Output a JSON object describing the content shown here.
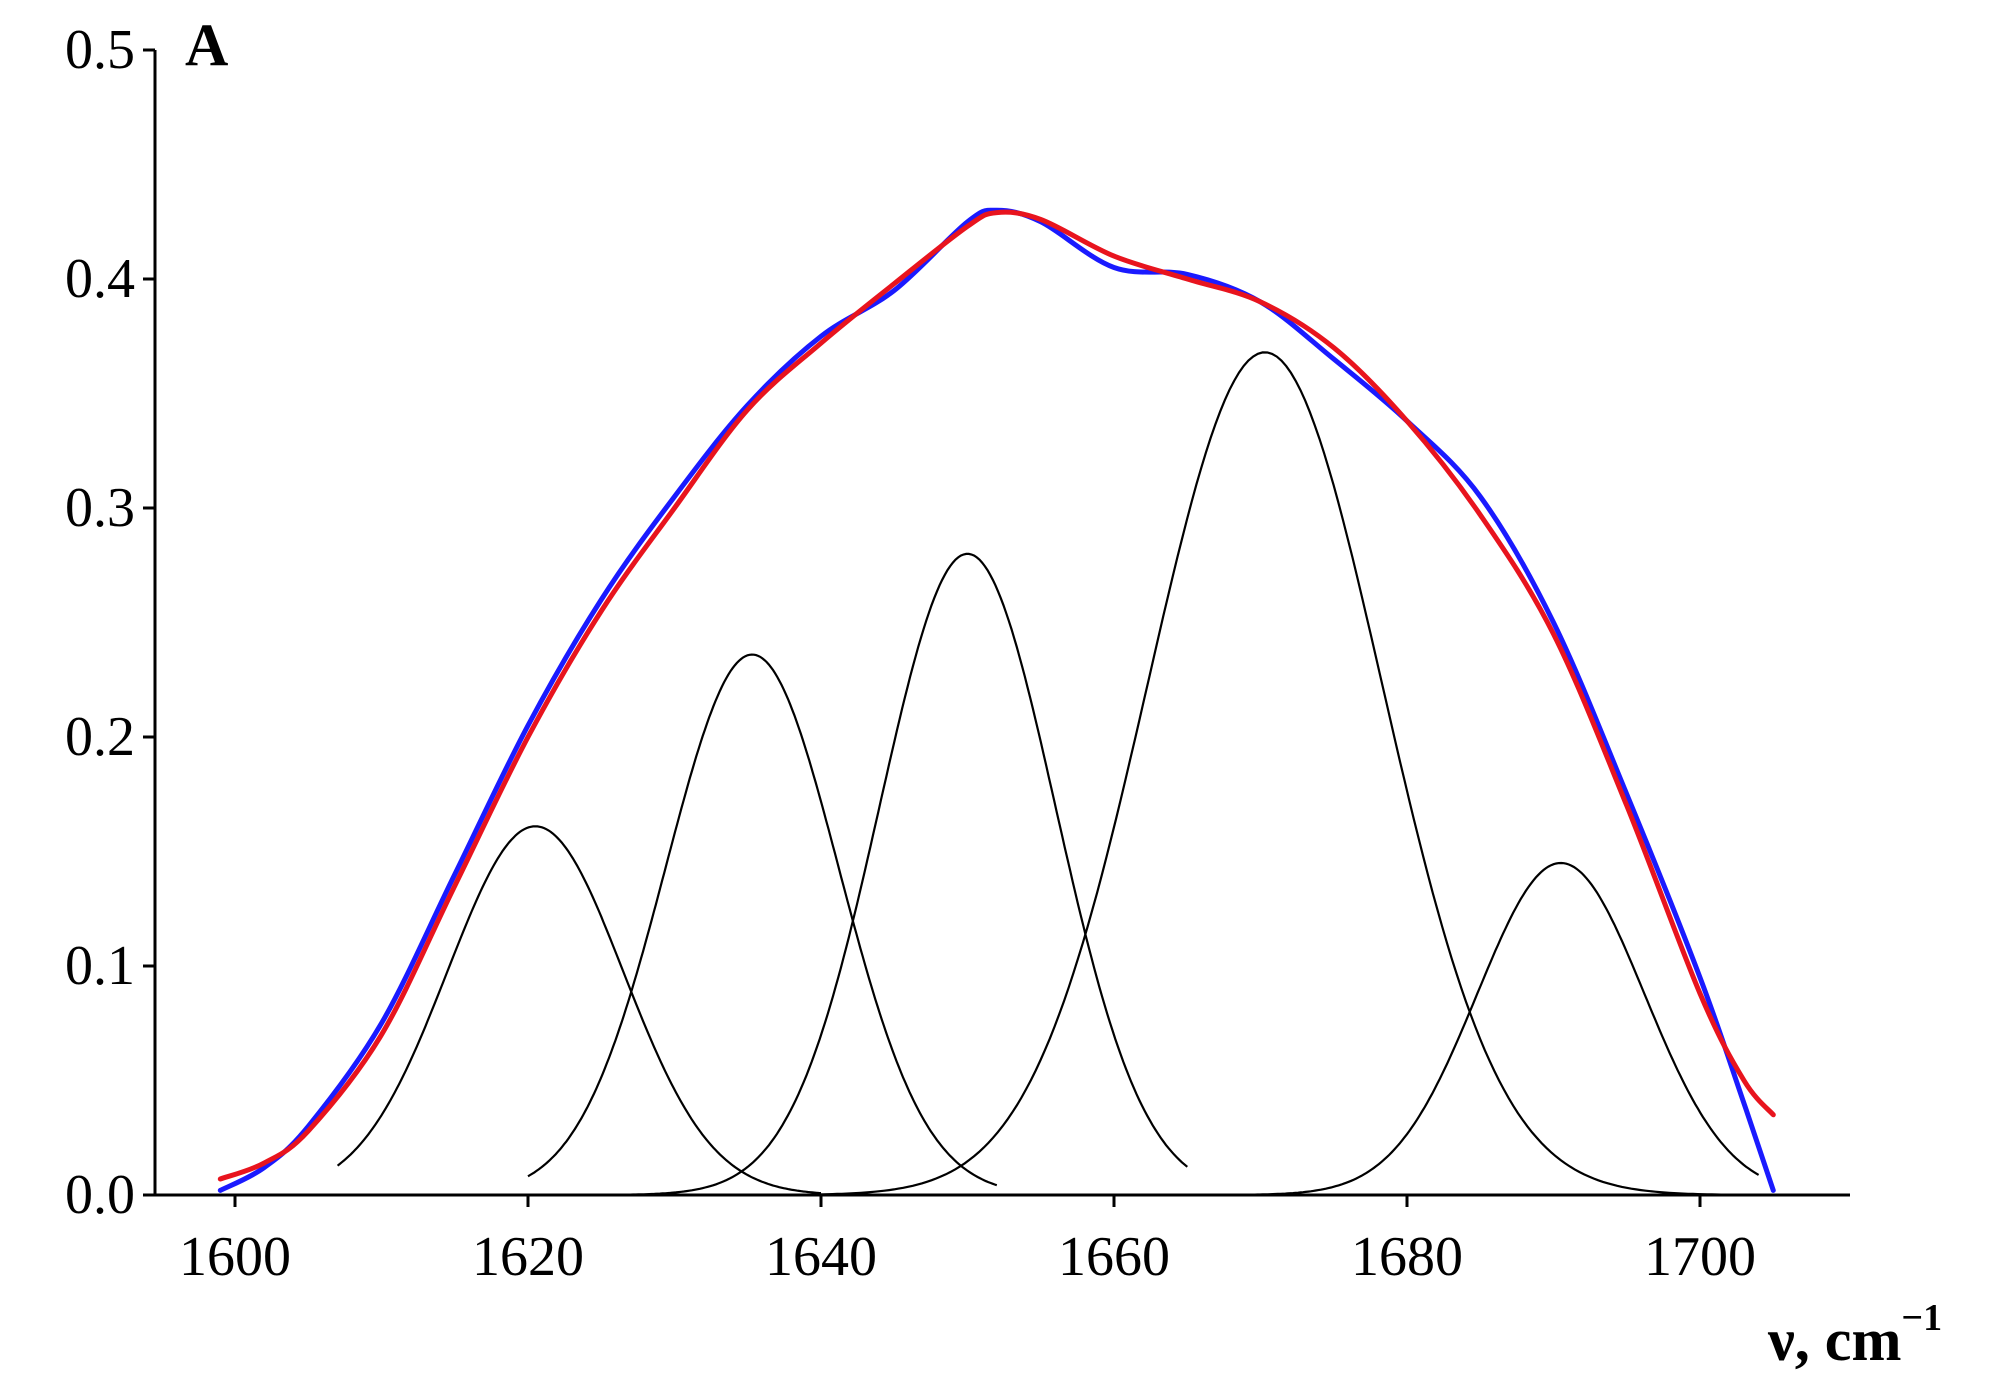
{
  "chart_data": {
    "type": "line",
    "title": "",
    "ylabel": "A",
    "xlabel": "ν, cm",
    "xlabel_sup": "−1",
    "xlim": [
      1595,
      1710
    ],
    "ylim": [
      0,
      0.5
    ],
    "x_ticks": [
      1600,
      1620,
      1640,
      1660,
      1680,
      1700
    ],
    "x_tick_labels": [
      "1600",
      "1620",
      "1640",
      "1660",
      "1680",
      "1700"
    ],
    "y_ticks": [
      0,
      0.1,
      0.2,
      0.3,
      0.4,
      0.5
    ],
    "y_tick_labels": [
      "0.0",
      "0.1",
      "0.2",
      "0.3",
      "0.4",
      "0.5"
    ],
    "grid": false,
    "legend": "none",
    "series": [
      {
        "role": "measured",
        "color": "#1a1aff",
        "x": [
          1599,
          1602,
          1605,
          1610,
          1615,
          1620,
          1625,
          1630,
          1635,
          1640,
          1645,
          1650,
          1652,
          1655,
          1660,
          1665,
          1670,
          1675,
          1680,
          1685,
          1690,
          1695,
          1700,
          1703,
          1705
        ],
        "y": [
          0.002,
          0.012,
          0.03,
          0.075,
          0.14,
          0.205,
          0.26,
          0.305,
          0.345,
          0.375,
          0.395,
          0.425,
          0.43,
          0.425,
          0.405,
          0.402,
          0.39,
          0.365,
          0.338,
          0.305,
          0.25,
          0.175,
          0.095,
          0.04,
          0.002
        ]
      },
      {
        "role": "fit",
        "color": "#e8141e",
        "x": [
          1599,
          1602,
          1605,
          1610,
          1615,
          1620,
          1625,
          1630,
          1635,
          1640,
          1645,
          1650,
          1652,
          1655,
          1660,
          1665,
          1670,
          1675,
          1680,
          1685,
          1690,
          1695,
          1700,
          1703,
          1705
        ],
        "y": [
          0.007,
          0.014,
          0.028,
          0.07,
          0.135,
          0.2,
          0.255,
          0.3,
          0.343,
          0.372,
          0.398,
          0.423,
          0.429,
          0.426,
          0.41,
          0.4,
          0.39,
          0.37,
          0.338,
          0.297,
          0.245,
          0.17,
          0.088,
          0.05,
          0.035
        ]
      }
    ],
    "components": [
      {
        "center": 1620.5,
        "height": 0.161,
        "sigma": 6.0,
        "x_start": 1607,
        "x_end": 1640
      },
      {
        "center": 1635.3,
        "height": 0.236,
        "sigma": 5.9,
        "x_start": 1620,
        "x_end": 1652
      },
      {
        "center": 1650.0,
        "height": 0.28,
        "sigma": 6.0,
        "x_start": 1625,
        "x_end": 1665
      },
      {
        "center": 1670.3,
        "height": 0.368,
        "sigma": 8.0,
        "x_start": 1634,
        "x_end": 1705
      },
      {
        "center": 1690.5,
        "height": 0.145,
        "sigma": 5.7,
        "x_start": 1666,
        "x_end": 1704
      }
    ]
  }
}
